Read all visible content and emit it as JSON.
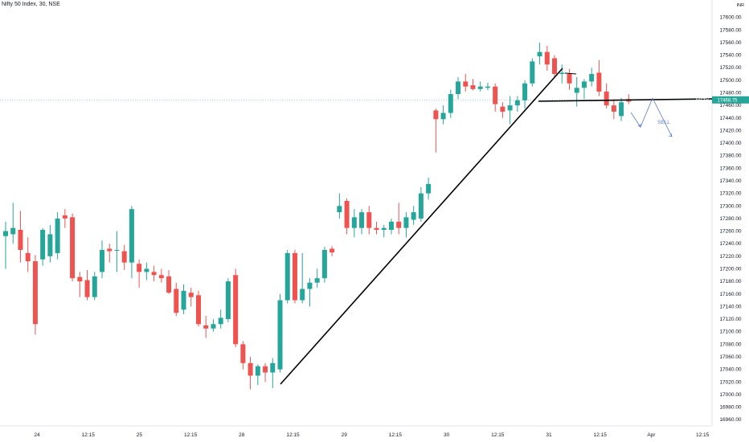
{
  "chart_title": "Nifty 50 Index, 30, NSE",
  "price_label": {
    "symbol": "NIFTY",
    "value": "17468.75"
  },
  "currency_label": "INR",
  "sell_label": "SELL",
  "colors": {
    "up": "#26a69a",
    "down": "#ef5350",
    "line": "#000000",
    "projection": "#5b7ccc",
    "label_bg": "#26a69a"
  },
  "chart_data": {
    "type": "candlestick",
    "title": "Nifty 50 Index, 30, NSE",
    "ylim": [
      16950,
      17620
    ],
    "y_ticks": [
      17600,
      17580,
      17560,
      17540,
      17520,
      17500,
      17480,
      17460,
      17440,
      17420,
      17400,
      17380,
      17360,
      17340,
      17320,
      17300,
      17280,
      17260,
      17240,
      17220,
      17200,
      17180,
      17160,
      17140,
      17120,
      17100,
      17080,
      17060,
      17040,
      17020,
      17000,
      16980,
      16960
    ],
    "x_tick_labels": [
      "24",
      "12:15",
      "25",
      "12:15",
      "28",
      "12:15",
      "29",
      "12:15",
      "30",
      "12:15",
      "31",
      "12:15",
      "Apr",
      "12:15"
    ],
    "last_price": 17468.75,
    "candles": [
      {
        "o": 17252,
        "h": 17275,
        "l": 17200,
        "c": 17260
      },
      {
        "o": 17255,
        "h": 17305,
        "l": 17240,
        "c": 17265
      },
      {
        "o": 17262,
        "h": 17292,
        "l": 17210,
        "c": 17230
      },
      {
        "o": 17225,
        "h": 17250,
        "l": 17195,
        "c": 17212
      },
      {
        "o": 17212,
        "h": 17222,
        "l": 17095,
        "c": 17112
      },
      {
        "o": 17215,
        "h": 17265,
        "l": 17205,
        "c": 17262
      },
      {
        "o": 17220,
        "h": 17270,
        "l": 17210,
        "c": 17255
      },
      {
        "o": 17225,
        "h": 17290,
        "l": 17215,
        "c": 17280
      },
      {
        "o": 17285,
        "h": 17295,
        "l": 17265,
        "c": 17280
      },
      {
        "o": 17282,
        "h": 17288,
        "l": 17180,
        "c": 17185
      },
      {
        "o": 17187,
        "h": 17195,
        "l": 17155,
        "c": 17180
      },
      {
        "o": 17182,
        "h": 17198,
        "l": 17150,
        "c": 17155
      },
      {
        "o": 17155,
        "h": 17195,
        "l": 17150,
        "c": 17188
      },
      {
        "o": 17195,
        "h": 17245,
        "l": 17185,
        "c": 17230
      },
      {
        "o": 17232,
        "h": 17240,
        "l": 17210,
        "c": 17228
      },
      {
        "o": 17230,
        "h": 17260,
        "l": 17195,
        "c": 17230
      },
      {
        "o": 17228,
        "h": 17238,
        "l": 17198,
        "c": 17210
      },
      {
        "o": 17210,
        "h": 17300,
        "l": 17185,
        "c": 17295
      },
      {
        "o": 17208,
        "h": 17215,
        "l": 17170,
        "c": 17195
      },
      {
        "o": 17195,
        "h": 17210,
        "l": 17182,
        "c": 17200
      },
      {
        "o": 17195,
        "h": 17205,
        "l": 17180,
        "c": 17190
      },
      {
        "o": 17190,
        "h": 17200,
        "l": 17178,
        "c": 17185
      },
      {
        "o": 17188,
        "h": 17198,
        "l": 17160,
        "c": 17162
      },
      {
        "o": 17168,
        "h": 17178,
        "l": 17125,
        "c": 17130
      },
      {
        "o": 17135,
        "h": 17175,
        "l": 17128,
        "c": 17165
      },
      {
        "o": 17162,
        "h": 17170,
        "l": 17140,
        "c": 17155
      },
      {
        "o": 17158,
        "h": 17165,
        "l": 17108,
        "c": 17112
      },
      {
        "o": 17110,
        "h": 17125,
        "l": 17090,
        "c": 17105
      },
      {
        "o": 17105,
        "h": 17120,
        "l": 17100,
        "c": 17112
      },
      {
        "o": 17112,
        "h": 17135,
        "l": 17105,
        "c": 17122
      },
      {
        "o": 17120,
        "h": 17185,
        "l": 17115,
        "c": 17180
      },
      {
        "o": 17190,
        "h": 17200,
        "l": 17075,
        "c": 17080
      },
      {
        "o": 17080,
        "h": 17085,
        "l": 17040,
        "c": 17050
      },
      {
        "o": 17050,
        "h": 17060,
        "l": 17008,
        "c": 17030
      },
      {
        "o": 17030,
        "h": 17048,
        "l": 17015,
        "c": 17045
      },
      {
        "o": 17045,
        "h": 17050,
        "l": 17020,
        "c": 17035
      },
      {
        "o": 17035,
        "h": 17058,
        "l": 17010,
        "c": 17050
      },
      {
        "o": 17040,
        "h": 17160,
        "l": 17035,
        "c": 17150
      },
      {
        "o": 17150,
        "h": 17230,
        "l": 17145,
        "c": 17225
      },
      {
        "o": 17225,
        "h": 17230,
        "l": 17145,
        "c": 17150
      },
      {
        "o": 17150,
        "h": 17225,
        "l": 17145,
        "c": 17168
      },
      {
        "o": 17168,
        "h": 17185,
        "l": 17140,
        "c": 17178
      },
      {
        "o": 17178,
        "h": 17200,
        "l": 17170,
        "c": 17185
      },
      {
        "o": 17185,
        "h": 17235,
        "l": 17178,
        "c": 17230
      },
      {
        "o": 17232,
        "h": 17236,
        "l": 17220,
        "c": 17226
      },
      {
        "o": 17290,
        "h": 17320,
        "l": 17280,
        "c": 17300
      },
      {
        "o": 17308,
        "h": 17312,
        "l": 17255,
        "c": 17265
      },
      {
        "o": 17265,
        "h": 17295,
        "l": 17250,
        "c": 17282
      },
      {
        "o": 17265,
        "h": 17295,
        "l": 17255,
        "c": 17290
      },
      {
        "o": 17290,
        "h": 17300,
        "l": 17255,
        "c": 17265
      },
      {
        "o": 17265,
        "h": 17275,
        "l": 17255,
        "c": 17262
      },
      {
        "o": 17262,
        "h": 17270,
        "l": 17250,
        "c": 17265
      },
      {
        "o": 17262,
        "h": 17280,
        "l": 17255,
        "c": 17275
      },
      {
        "o": 17275,
        "h": 17305,
        "l": 17255,
        "c": 17265
      },
      {
        "o": 17265,
        "h": 17290,
        "l": 17250,
        "c": 17282
      },
      {
        "o": 17278,
        "h": 17300,
        "l": 17270,
        "c": 17290
      },
      {
        "o": 17280,
        "h": 17330,
        "l": 17275,
        "c": 17320
      },
      {
        "o": 17320,
        "h": 17345,
        "l": 17310,
        "c": 17335
      },
      {
        "o": 17452,
        "h": 17455,
        "l": 17385,
        "c": 17438
      },
      {
        "o": 17438,
        "h": 17460,
        "l": 17430,
        "c": 17448
      },
      {
        "o": 17448,
        "h": 17485,
        "l": 17440,
        "c": 17478
      },
      {
        "o": 17478,
        "h": 17505,
        "l": 17470,
        "c": 17498
      },
      {
        "o": 17498,
        "h": 17510,
        "l": 17482,
        "c": 17490
      },
      {
        "o": 17492,
        "h": 17502,
        "l": 17484,
        "c": 17486
      },
      {
        "o": 17486,
        "h": 17498,
        "l": 17482,
        "c": 17490
      },
      {
        "o": 17488,
        "h": 17496,
        "l": 17484,
        "c": 17490
      },
      {
        "o": 17490,
        "h": 17495,
        "l": 17450,
        "c": 17462
      },
      {
        "o": 17458,
        "h": 17465,
        "l": 17440,
        "c": 17450
      },
      {
        "o": 17452,
        "h": 17475,
        "l": 17430,
        "c": 17460
      },
      {
        "o": 17460,
        "h": 17475,
        "l": 17450,
        "c": 17468
      },
      {
        "o": 17468,
        "h": 17500,
        "l": 17455,
        "c": 17495
      },
      {
        "o": 17495,
        "h": 17535,
        "l": 17490,
        "c": 17530
      },
      {
        "o": 17538,
        "h": 17560,
        "l": 17525,
        "c": 17545
      },
      {
        "o": 17545,
        "h": 17555,
        "l": 17515,
        "c": 17525
      },
      {
        "o": 17535,
        "h": 17540,
        "l": 17505,
        "c": 17510
      },
      {
        "o": 17510,
        "h": 17525,
        "l": 17495,
        "c": 17512
      },
      {
        "o": 17510,
        "h": 17518,
        "l": 17485,
        "c": 17495
      },
      {
        "o": 17480,
        "h": 17505,
        "l": 17458,
        "c": 17488
      },
      {
        "o": 17488,
        "h": 17502,
        "l": 17470,
        "c": 17498
      },
      {
        "o": 17498,
        "h": 17520,
        "l": 17490,
        "c": 17510
      },
      {
        "o": 17512,
        "h": 17532,
        "l": 17475,
        "c": 17482
      },
      {
        "o": 17482,
        "h": 17495,
        "l": 17455,
        "c": 17460
      },
      {
        "o": 17460,
        "h": 17470,
        "l": 17438,
        "c": 17450
      },
      {
        "o": 17443,
        "h": 17472,
        "l": 17435,
        "c": 17465
      },
      {
        "o": 17470,
        "h": 17478,
        "l": 17462,
        "c": 17466
      }
    ]
  }
}
